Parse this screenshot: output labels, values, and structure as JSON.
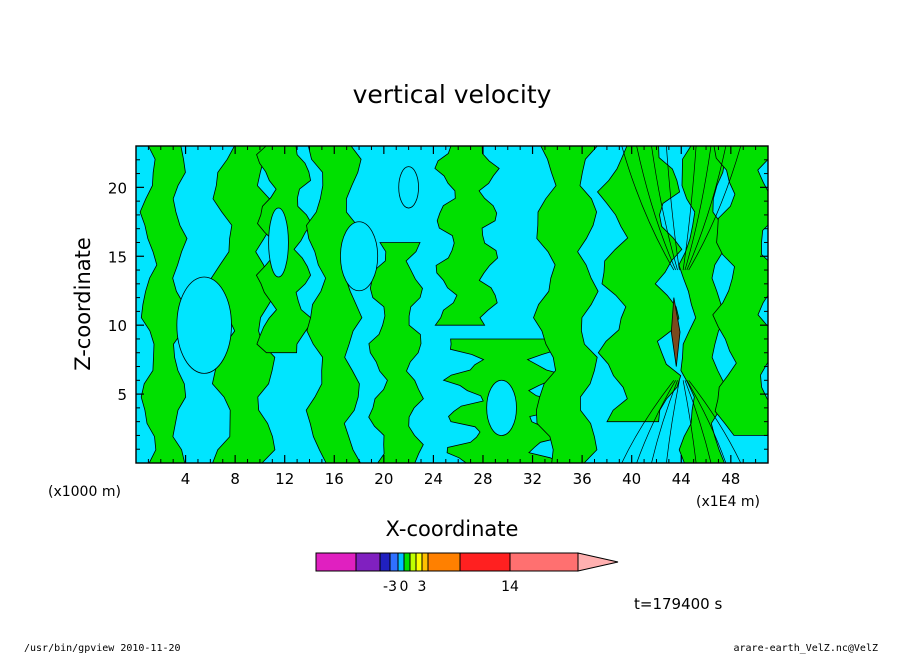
{
  "chart_data": {
    "type": "heatmap",
    "title": "vertical velocity",
    "xlabel": "X-coordinate",
    "ylabel": "Z-coordinate",
    "x_unit_left": "(x1000 m)",
    "x_unit_right": "(x1E4 m)",
    "xlim": [
      0,
      51
    ],
    "ylim": [
      0,
      23
    ],
    "x_ticks": [
      4,
      8,
      12,
      16,
      20,
      24,
      28,
      32,
      36,
      40,
      44,
      48
    ],
    "y_ticks": [
      5,
      10,
      15,
      20
    ],
    "x_tick_labels": [
      "4",
      "8",
      "12",
      "16",
      "20",
      "24",
      "28",
      "32",
      "36",
      "40",
      "44",
      "48"
    ],
    "y_tick_labels": [
      "5",
      "10",
      "15",
      "20"
    ],
    "field_colors": {
      "negative": "#00e5ff",
      "positive": "#00e000",
      "strong": "#7b4a1e",
      "contour": "#000000"
    },
    "green_regions": [
      {
        "x": [
          1.0,
          3.5
        ],
        "z": [
          0,
          23
        ]
      },
      {
        "x": [
          7.0,
          10.5
        ],
        "z": [
          0,
          23
        ]
      },
      {
        "x": [
          10.5,
          13.5
        ],
        "z": [
          8,
          23
        ]
      },
      {
        "x": [
          14.5,
          17.5
        ],
        "z": [
          0,
          23
        ]
      },
      {
        "x": [
          19.5,
          22.5
        ],
        "z": [
          0,
          16
        ]
      },
      {
        "x": [
          25.0,
          28.5
        ],
        "z": [
          10,
          23
        ]
      },
      {
        "x": [
          26.5,
          33.0
        ],
        "z": [
          0,
          9
        ]
      },
      {
        "x": [
          33.0,
          36.5
        ],
        "z": [
          0,
          23
        ]
      },
      {
        "x": [
          38.5,
          43.0
        ],
        "z": [
          3,
          23
        ]
      },
      {
        "x": [
          44.5,
          47.0
        ],
        "z": [
          0,
          23
        ]
      },
      {
        "x": [
          47.5,
          51.0
        ],
        "z": [
          2,
          23
        ]
      }
    ],
    "colorbar": {
      "colors": [
        "#e020c0",
        "#8020c0",
        "#2020c0",
        "#3070ff",
        "#00c0ff",
        "#00e000",
        "#c0ff00",
        "#ffff00",
        "#ffc000",
        "#ff8000",
        "#ff2020",
        "#ff7070",
        "#ffb0b0"
      ],
      "labels": [
        "-3",
        "0",
        "3",
        "14"
      ]
    },
    "time_label": "t=179400 s"
  },
  "footer": {
    "left": "/usr/bin/gpview   2010-11-20",
    "right": "arare-earth_VelZ.nc@VelZ"
  }
}
